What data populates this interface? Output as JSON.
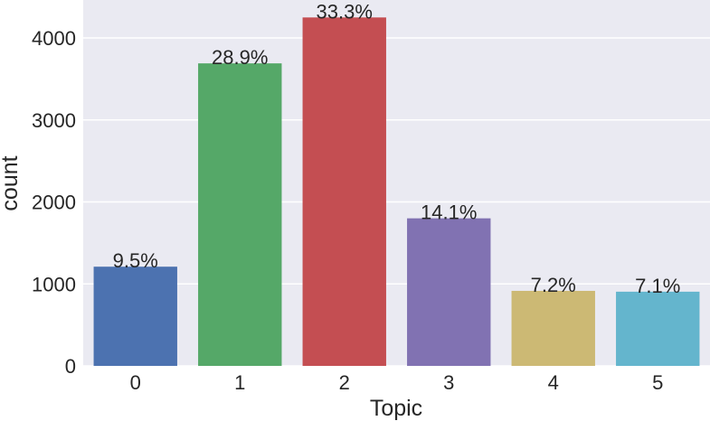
{
  "chart_data": {
    "type": "bar",
    "title": "",
    "xlabel": "Topic",
    "ylabel": "count",
    "categories": [
      "0",
      "1",
      "2",
      "3",
      "4",
      "5"
    ],
    "values": [
      1210,
      3690,
      4250,
      1800,
      915,
      905
    ],
    "data_labels": [
      "9.5%",
      "28.9%",
      "33.3%",
      "14.1%",
      "7.2%",
      "7.1%"
    ],
    "bar_colors": [
      "#4c72b0",
      "#55a868",
      "#c44e52",
      "#8172b2",
      "#ccb974",
      "#64b5cd"
    ],
    "yticks": [
      0,
      1000,
      2000,
      3000,
      4000
    ],
    "ylim": [
      0,
      4300
    ],
    "grid": true,
    "background_color": "#eaeaf2"
  }
}
